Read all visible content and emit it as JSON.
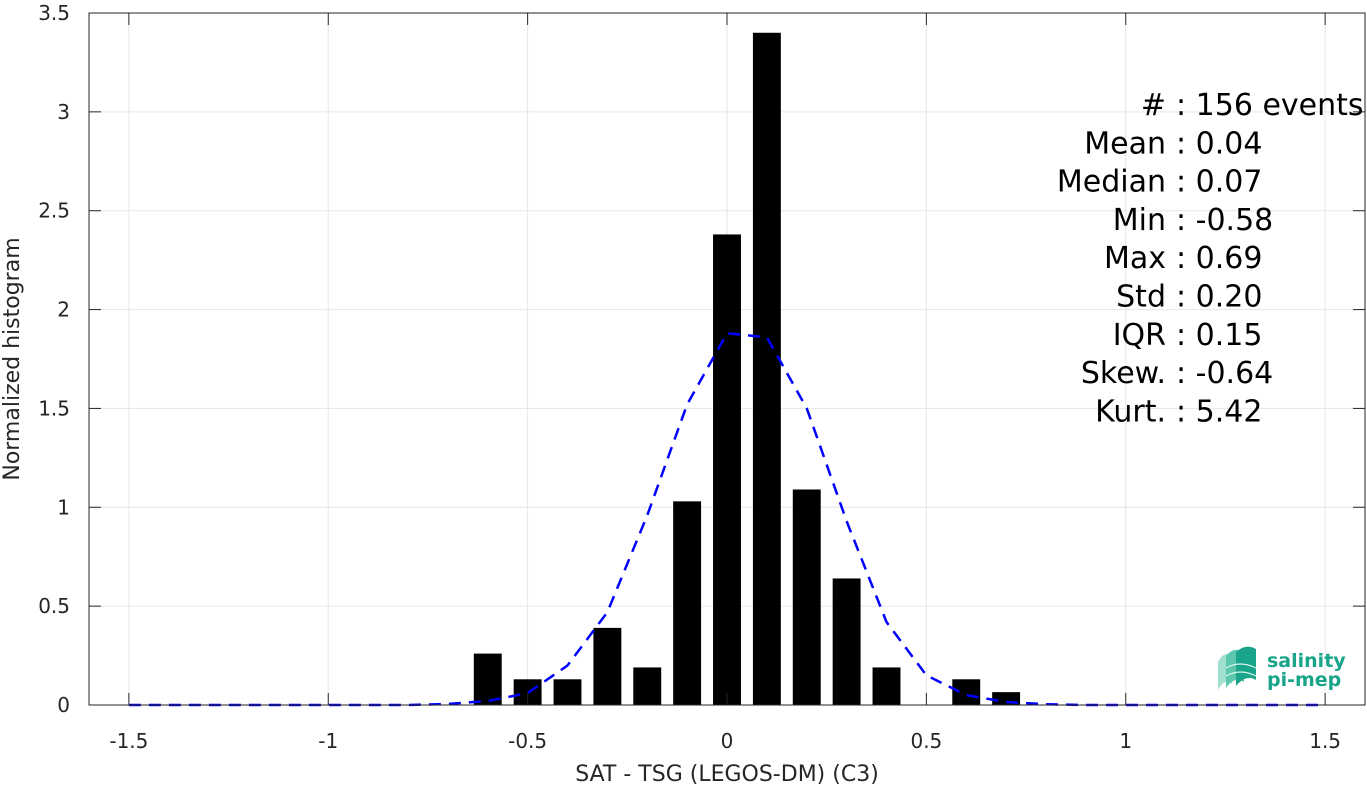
{
  "chart_data": {
    "type": "bar",
    "xlabel": "SAT - TSG (LEGOS-DM) (C3)",
    "ylabel": "Normalized histogram",
    "xlim": [
      -1.6,
      1.6
    ],
    "ylim": [
      0,
      3.5
    ],
    "x_ticks": [
      "-1.5",
      "-1",
      "-0.5",
      "0",
      "0.5",
      "1",
      "1.5"
    ],
    "y_ticks": [
      "0",
      "0.5",
      "1",
      "1.5",
      "2",
      "2.5",
      "3",
      "3.5"
    ],
    "grid": true,
    "bar_width": 0.07,
    "bars": {
      "x": [
        -0.6,
        -0.5,
        -0.4,
        -0.3,
        -0.2,
        -0.1,
        0.0,
        0.1,
        0.2,
        0.3,
        0.4,
        0.5,
        0.6,
        0.7
      ],
      "values": [
        0.26,
        0.13,
        0.13,
        0.39,
        0.19,
        1.03,
        2.38,
        3.4,
        1.09,
        0.64,
        0.19,
        0.0,
        0.13,
        0.065
      ],
      "color": "#000000"
    },
    "fit_curve": {
      "style": "dashed",
      "color": "#0000ff",
      "x": [
        -1.5,
        -1.4,
        -1.3,
        -1.2,
        -1.1,
        -1.0,
        -0.9,
        -0.8,
        -0.7,
        -0.6,
        -0.5,
        -0.4,
        -0.3,
        -0.2,
        -0.1,
        0.0,
        0.1,
        0.2,
        0.3,
        0.4,
        0.5,
        0.6,
        0.7,
        0.8,
        0.9,
        1.0,
        1.1,
        1.2,
        1.3,
        1.4,
        1.5
      ],
      "y": [
        0.0,
        0.0,
        0.0,
        0.0,
        0.0,
        0.0,
        0.0,
        0.0,
        0.005,
        0.02,
        0.06,
        0.2,
        0.47,
        0.96,
        1.52,
        1.88,
        1.86,
        1.5,
        0.93,
        0.42,
        0.15,
        0.05,
        0.015,
        0.004,
        0.0,
        0.0,
        0.0,
        0.0,
        0.0,
        0.0,
        0.0
      ]
    },
    "stats": [
      {
        "label": "#",
        "value": ": 156 events"
      },
      {
        "label": "Mean",
        "value": ": 0.04"
      },
      {
        "label": "Median",
        "value": ": 0.07"
      },
      {
        "label": "Min",
        "value": ": -0.58"
      },
      {
        "label": "Max",
        "value": ": 0.69"
      },
      {
        "label": "Std",
        "value": ": 0.20"
      },
      {
        "label": "IQR",
        "value": ": 0.15"
      },
      {
        "label": "Skew.",
        "value": ": -0.64"
      },
      {
        "label": "Kurt.",
        "value": ": 5.42"
      }
    ]
  },
  "logo": {
    "line1": "salinity",
    "line2": "pi-mep",
    "color": "#1aa58a",
    "icon": "salinity-waves-icon"
  }
}
